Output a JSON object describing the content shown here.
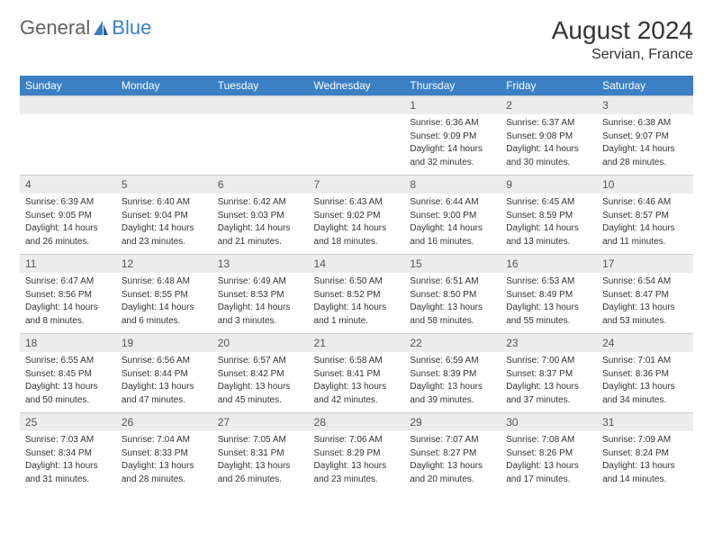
{
  "logo": {
    "textGeneral": "General",
    "textBlue": "Blue"
  },
  "header": {
    "title": "August 2024",
    "location": "Servian, France"
  },
  "colors": {
    "headerBg": "#3b7fc4",
    "headerText": "#ffffff",
    "dayNumBg": "#ececec",
    "dayNumText": "#555555",
    "bodyText": "#333333",
    "border": "#cccccc"
  },
  "dayHeaders": [
    "Sunday",
    "Monday",
    "Tuesday",
    "Wednesday",
    "Thursday",
    "Friday",
    "Saturday"
  ],
  "weeks": [
    [
      {
        "empty": true
      },
      {
        "empty": true
      },
      {
        "empty": true
      },
      {
        "empty": true
      },
      {
        "num": "1",
        "sunrise": "Sunrise: 6:36 AM",
        "sunset": "Sunset: 9:09 PM",
        "day1": "Daylight: 14 hours",
        "day2": "and 32 minutes."
      },
      {
        "num": "2",
        "sunrise": "Sunrise: 6:37 AM",
        "sunset": "Sunset: 9:08 PM",
        "day1": "Daylight: 14 hours",
        "day2": "and 30 minutes."
      },
      {
        "num": "3",
        "sunrise": "Sunrise: 6:38 AM",
        "sunset": "Sunset: 9:07 PM",
        "day1": "Daylight: 14 hours",
        "day2": "and 28 minutes."
      }
    ],
    [
      {
        "num": "4",
        "sunrise": "Sunrise: 6:39 AM",
        "sunset": "Sunset: 9:05 PM",
        "day1": "Daylight: 14 hours",
        "day2": "and 26 minutes."
      },
      {
        "num": "5",
        "sunrise": "Sunrise: 6:40 AM",
        "sunset": "Sunset: 9:04 PM",
        "day1": "Daylight: 14 hours",
        "day2": "and 23 minutes."
      },
      {
        "num": "6",
        "sunrise": "Sunrise: 6:42 AM",
        "sunset": "Sunset: 9:03 PM",
        "day1": "Daylight: 14 hours",
        "day2": "and 21 minutes."
      },
      {
        "num": "7",
        "sunrise": "Sunrise: 6:43 AM",
        "sunset": "Sunset: 9:02 PM",
        "day1": "Daylight: 14 hours",
        "day2": "and 18 minutes."
      },
      {
        "num": "8",
        "sunrise": "Sunrise: 6:44 AM",
        "sunset": "Sunset: 9:00 PM",
        "day1": "Daylight: 14 hours",
        "day2": "and 16 minutes."
      },
      {
        "num": "9",
        "sunrise": "Sunrise: 6:45 AM",
        "sunset": "Sunset: 8:59 PM",
        "day1": "Daylight: 14 hours",
        "day2": "and 13 minutes."
      },
      {
        "num": "10",
        "sunrise": "Sunrise: 6:46 AM",
        "sunset": "Sunset: 8:57 PM",
        "day1": "Daylight: 14 hours",
        "day2": "and 11 minutes."
      }
    ],
    [
      {
        "num": "11",
        "sunrise": "Sunrise: 6:47 AM",
        "sunset": "Sunset: 8:56 PM",
        "day1": "Daylight: 14 hours",
        "day2": "and 8 minutes."
      },
      {
        "num": "12",
        "sunrise": "Sunrise: 6:48 AM",
        "sunset": "Sunset: 8:55 PM",
        "day1": "Daylight: 14 hours",
        "day2": "and 6 minutes."
      },
      {
        "num": "13",
        "sunrise": "Sunrise: 6:49 AM",
        "sunset": "Sunset: 8:53 PM",
        "day1": "Daylight: 14 hours",
        "day2": "and 3 minutes."
      },
      {
        "num": "14",
        "sunrise": "Sunrise: 6:50 AM",
        "sunset": "Sunset: 8:52 PM",
        "day1": "Daylight: 14 hours",
        "day2": "and 1 minute."
      },
      {
        "num": "15",
        "sunrise": "Sunrise: 6:51 AM",
        "sunset": "Sunset: 8:50 PM",
        "day1": "Daylight: 13 hours",
        "day2": "and 58 minutes."
      },
      {
        "num": "16",
        "sunrise": "Sunrise: 6:53 AM",
        "sunset": "Sunset: 8:49 PM",
        "day1": "Daylight: 13 hours",
        "day2": "and 55 minutes."
      },
      {
        "num": "17",
        "sunrise": "Sunrise: 6:54 AM",
        "sunset": "Sunset: 8:47 PM",
        "day1": "Daylight: 13 hours",
        "day2": "and 53 minutes."
      }
    ],
    [
      {
        "num": "18",
        "sunrise": "Sunrise: 6:55 AM",
        "sunset": "Sunset: 8:45 PM",
        "day1": "Daylight: 13 hours",
        "day2": "and 50 minutes."
      },
      {
        "num": "19",
        "sunrise": "Sunrise: 6:56 AM",
        "sunset": "Sunset: 8:44 PM",
        "day1": "Daylight: 13 hours",
        "day2": "and 47 minutes."
      },
      {
        "num": "20",
        "sunrise": "Sunrise: 6:57 AM",
        "sunset": "Sunset: 8:42 PM",
        "day1": "Daylight: 13 hours",
        "day2": "and 45 minutes."
      },
      {
        "num": "21",
        "sunrise": "Sunrise: 6:58 AM",
        "sunset": "Sunset: 8:41 PM",
        "day1": "Daylight: 13 hours",
        "day2": "and 42 minutes."
      },
      {
        "num": "22",
        "sunrise": "Sunrise: 6:59 AM",
        "sunset": "Sunset: 8:39 PM",
        "day1": "Daylight: 13 hours",
        "day2": "and 39 minutes."
      },
      {
        "num": "23",
        "sunrise": "Sunrise: 7:00 AM",
        "sunset": "Sunset: 8:37 PM",
        "day1": "Daylight: 13 hours",
        "day2": "and 37 minutes."
      },
      {
        "num": "24",
        "sunrise": "Sunrise: 7:01 AM",
        "sunset": "Sunset: 8:36 PM",
        "day1": "Daylight: 13 hours",
        "day2": "and 34 minutes."
      }
    ],
    [
      {
        "num": "25",
        "sunrise": "Sunrise: 7:03 AM",
        "sunset": "Sunset: 8:34 PM",
        "day1": "Daylight: 13 hours",
        "day2": "and 31 minutes."
      },
      {
        "num": "26",
        "sunrise": "Sunrise: 7:04 AM",
        "sunset": "Sunset: 8:33 PM",
        "day1": "Daylight: 13 hours",
        "day2": "and 28 minutes."
      },
      {
        "num": "27",
        "sunrise": "Sunrise: 7:05 AM",
        "sunset": "Sunset: 8:31 PM",
        "day1": "Daylight: 13 hours",
        "day2": "and 26 minutes."
      },
      {
        "num": "28",
        "sunrise": "Sunrise: 7:06 AM",
        "sunset": "Sunset: 8:29 PM",
        "day1": "Daylight: 13 hours",
        "day2": "and 23 minutes."
      },
      {
        "num": "29",
        "sunrise": "Sunrise: 7:07 AM",
        "sunset": "Sunset: 8:27 PM",
        "day1": "Daylight: 13 hours",
        "day2": "and 20 minutes."
      },
      {
        "num": "30",
        "sunrise": "Sunrise: 7:08 AM",
        "sunset": "Sunset: 8:26 PM",
        "day1": "Daylight: 13 hours",
        "day2": "and 17 minutes."
      },
      {
        "num": "31",
        "sunrise": "Sunrise: 7:09 AM",
        "sunset": "Sunset: 8:24 PM",
        "day1": "Daylight: 13 hours",
        "day2": "and 14 minutes."
      }
    ]
  ]
}
